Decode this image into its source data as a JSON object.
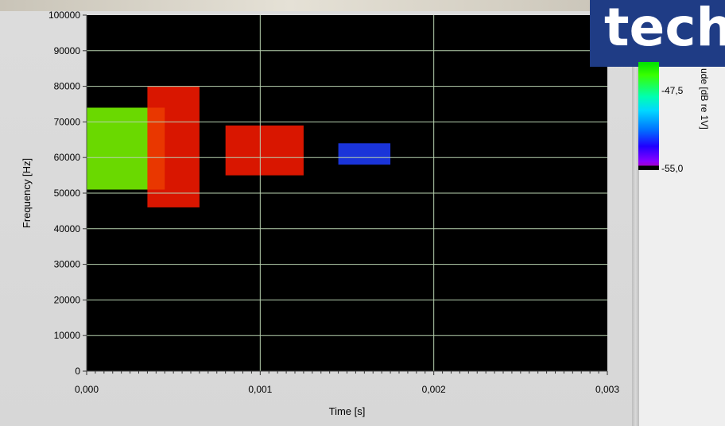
{
  "chart_data": {
    "type": "heatmap",
    "xlabel": "Time [s]",
    "ylabel": "Frequency [Hz]",
    "xlim": [
      0,
      0.003
    ],
    "ylim": [
      0,
      100000
    ],
    "x_ticks": [
      "0,000",
      "0,001",
      "0,002",
      "0,003"
    ],
    "y_ticks": [
      "0",
      "10000",
      "20000",
      "30000",
      "40000",
      "50000",
      "60000",
      "70000",
      "80000",
      "90000",
      "100000"
    ],
    "colorbar": {
      "label": "ude [dB re 1V]",
      "ticks": [
        "-47,5",
        "-55,0"
      ],
      "colors": [
        "#00e000",
        "#00ffb0",
        "#00d8ff",
        "#0070ff",
        "#2000ff",
        "#a000c8",
        "#000000"
      ]
    },
    "blobs": [
      {
        "t_start": 0.0,
        "t_end": 0.00045,
        "f_low": 51000,
        "f_high": 74000,
        "intensity": "mixed green-yellow-red"
      },
      {
        "t_start": 0.00035,
        "t_end": 0.00065,
        "f_low": 46000,
        "f_high": 80000,
        "intensity": "red core"
      },
      {
        "t_start": 0.0008,
        "t_end": 0.00125,
        "f_low": 55000,
        "f_high": 69000,
        "intensity": "red core"
      },
      {
        "t_start": 0.00145,
        "t_end": 0.00175,
        "f_low": 58000,
        "f_high": 64000,
        "intensity": "blue"
      }
    ]
  },
  "logo": {
    "text": "tech"
  },
  "colors": {
    "plot_bg": "#000000",
    "grid": "#b8d2b0",
    "panel": "#d8d8d8",
    "logo_bg": "#1f3c85"
  }
}
